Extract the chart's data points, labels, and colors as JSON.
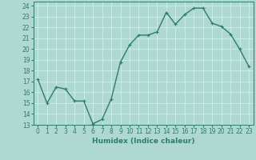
{
  "x": [
    0,
    1,
    2,
    3,
    4,
    5,
    6,
    7,
    8,
    9,
    10,
    11,
    12,
    13,
    14,
    15,
    16,
    17,
    18,
    19,
    20,
    21,
    22,
    23
  ],
  "y": [
    17.2,
    15.0,
    16.5,
    16.3,
    15.2,
    15.2,
    13.1,
    13.5,
    15.4,
    18.8,
    20.4,
    21.3,
    21.3,
    21.6,
    23.4,
    22.3,
    23.2,
    23.8,
    23.8,
    22.4,
    22.1,
    21.4,
    20.0,
    18.4
  ],
  "line_color": "#2e7d6e",
  "marker": "+",
  "marker_size": 3,
  "bg_color": "#aed8d0",
  "grid_color": "#c8ece6",
  "xlabel": "Humidex (Indice chaleur)",
  "xlim": [
    -0.5,
    23.5
  ],
  "ylim": [
    13,
    24.4
  ],
  "yticks": [
    13,
    14,
    15,
    16,
    17,
    18,
    19,
    20,
    21,
    22,
    23,
    24
  ],
  "xticks": [
    0,
    1,
    2,
    3,
    4,
    5,
    6,
    7,
    8,
    9,
    10,
    11,
    12,
    13,
    14,
    15,
    16,
    17,
    18,
    19,
    20,
    21,
    22,
    23
  ],
  "tick_fontsize": 5.5,
  "label_fontsize": 6.5,
  "line_width": 1.0,
  "marker_edge_width": 0.8
}
